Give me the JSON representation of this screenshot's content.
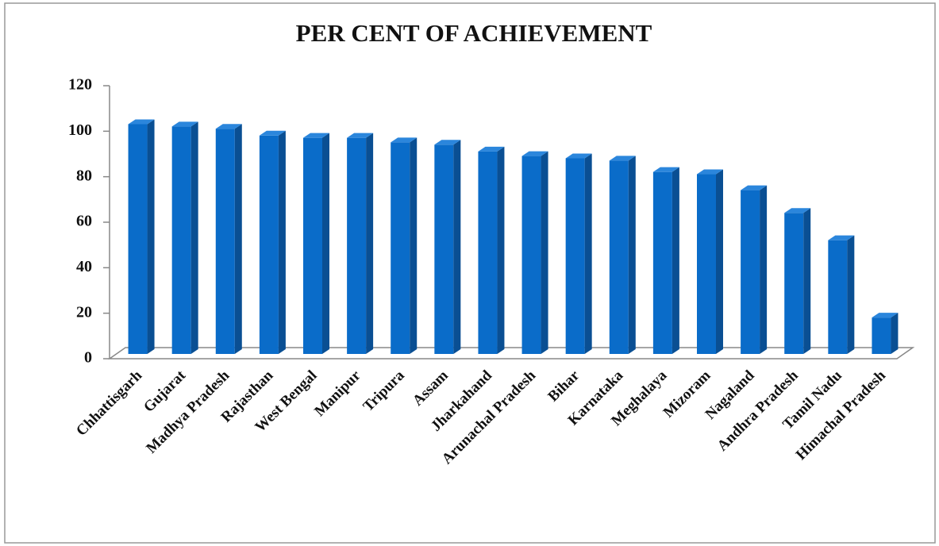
{
  "chart_data": {
    "type": "bar",
    "title": "PER CENT OF ACHIEVEMENT",
    "categories": [
      "Chhattisgarh",
      "Gujarat",
      "Madhya Pradesh",
      "Rajasthan",
      "West Bengal",
      "Manipur",
      "Tripura",
      "Assam",
      "Jharkahand",
      "Arunachal Pradesh",
      "Bihar",
      "Karnataka",
      "Meghalaya",
      "Mizoram",
      "Nagaland",
      "Andhra Pradesh",
      "Tamil Nadu",
      "Himachal Pradesh"
    ],
    "values": [
      101,
      100,
      99,
      96,
      95,
      95,
      93,
      92,
      89,
      87,
      86,
      85,
      80,
      79,
      72,
      62,
      50,
      16
    ],
    "color": "#0a6cc9",
    "ylim": [
      0,
      120
    ],
    "yticks": [
      0,
      20,
      40,
      60,
      80,
      100,
      120
    ],
    "grid": false
  }
}
